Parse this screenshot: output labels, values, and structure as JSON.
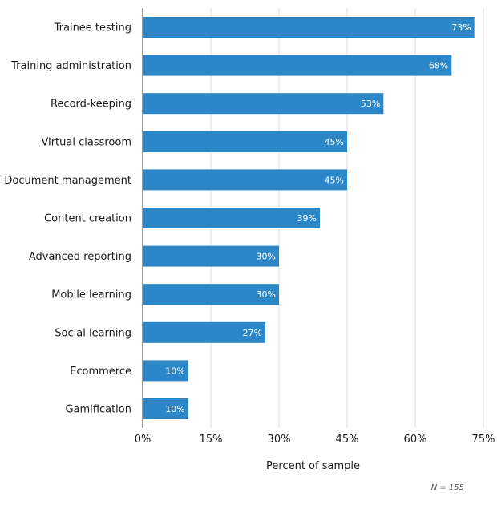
{
  "chart_data": {
    "type": "bar",
    "orientation": "horizontal",
    "categories": [
      "Trainee testing",
      "Training administration",
      "Record-keeping",
      "Virtual classroom",
      "Document management",
      "Content creation",
      "Advanced reporting",
      "Mobile learning",
      "Social learning",
      "Ecommerce",
      "Gamification"
    ],
    "values": [
      73,
      68,
      53,
      45,
      45,
      39,
      30,
      30,
      27,
      10,
      10
    ],
    "value_labels": [
      "73%",
      "68%",
      "53%",
      "45%",
      "45%",
      "39%",
      "30%",
      "30%",
      "27%",
      "10%",
      "10%"
    ],
    "xlabel": "Percent of sample",
    "ylabel": "",
    "xlim": [
      0,
      75
    ],
    "xticks": [
      0,
      15,
      30,
      45,
      60,
      75
    ],
    "xtick_labels": [
      "0%",
      "15%",
      "30%",
      "45%",
      "60%",
      "75%"
    ],
    "grid": "vertical",
    "bar_color": "#2b87c8",
    "note": "N = 155"
  }
}
